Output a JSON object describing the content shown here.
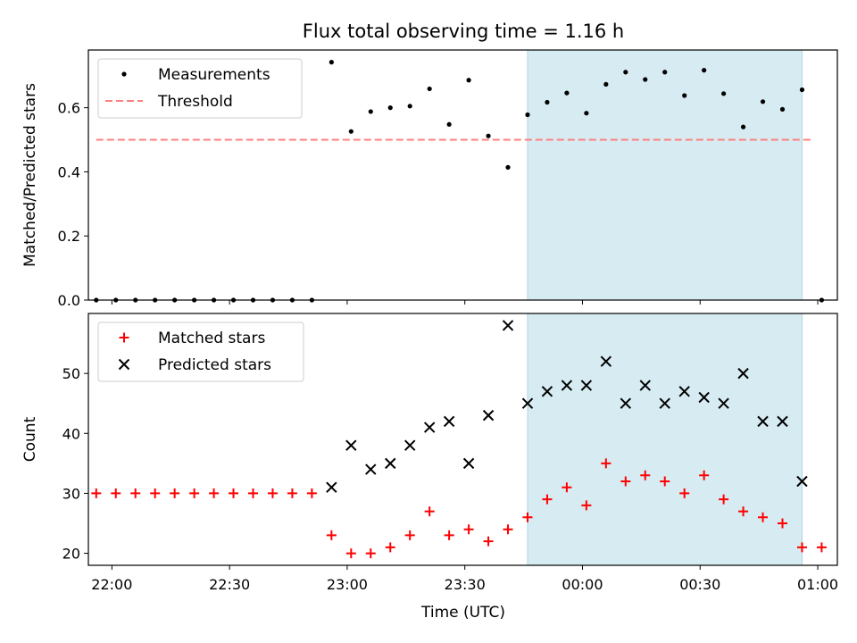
{
  "chart_data": {
    "title": "Flux total observing time = 1.16 h",
    "xlabel": "Time (UTC)",
    "x_ticks": [
      "22:00",
      "22:30",
      "23:00",
      "23:30",
      "00:00",
      "00:30",
      "01:00"
    ],
    "x_range": [
      "21:54",
      "01:05"
    ],
    "highlight_span": [
      "23:46",
      "00:56"
    ],
    "highlight_color": "#add8e6",
    "panels": [
      {
        "type": "scatter",
        "ylabel": "Matched/Predicted stars",
        "ylim": [
          0,
          0.78
        ],
        "y_ticks": [
          "0.0",
          "0.2",
          "0.4",
          "0.6"
        ],
        "legend_position": "upper left",
        "series": [
          {
            "name": "Measurements",
            "marker": "dot",
            "color": "#000000",
            "points": [
              [
                "21:56",
                0
              ],
              [
                "22:01",
                0
              ],
              [
                "22:06",
                0
              ],
              [
                "22:11",
                0
              ],
              [
                "22:16",
                0
              ],
              [
                "22:21",
                0
              ],
              [
                "22:26",
                0
              ],
              [
                "22:31",
                0
              ],
              [
                "22:36",
                0
              ],
              [
                "22:41",
                0
              ],
              [
                "22:46",
                0
              ],
              [
                "22:51",
                0
              ],
              [
                "22:56",
                0.742
              ],
              [
                "23:01",
                0.526
              ],
              [
                "23:06",
                0.588
              ],
              [
                "23:11",
                0.6
              ],
              [
                "23:16",
                0.605
              ],
              [
                "23:21",
                0.659
              ],
              [
                "23:26",
                0.548
              ],
              [
                "23:31",
                0.686
              ],
              [
                "23:36",
                0.512
              ],
              [
                "23:41",
                0.414
              ],
              [
                "23:46",
                0.578
              ],
              [
                "23:51",
                0.617
              ],
              [
                "23:56",
                0.646
              ],
              [
                "00:01",
                0.583
              ],
              [
                "00:06",
                0.673
              ],
              [
                "00:11",
                0.711
              ],
              [
                "00:16",
                0.688
              ],
              [
                "00:21",
                0.711
              ],
              [
                "00:26",
                0.638
              ],
              [
                "00:31",
                0.717
              ],
              [
                "00:36",
                0.644
              ],
              [
                "00:41",
                0.54
              ],
              [
                "00:46",
                0.619
              ],
              [
                "00:51",
                0.595
              ],
              [
                "00:56",
                0.656
              ],
              [
                "01:01",
                0
              ]
            ]
          },
          {
            "name": "Threshold",
            "type": "line",
            "style": "dashed",
            "color": "#ff7f7f",
            "points": [
              [
                "21:56",
                0.5
              ],
              [
                "00:59",
                0.5
              ]
            ]
          }
        ]
      },
      {
        "type": "scatter",
        "ylabel": "Count",
        "ylim": [
          18,
          60
        ],
        "y_ticks": [
          "20",
          "30",
          "40",
          "50"
        ],
        "legend_position": "upper left",
        "series": [
          {
            "name": "Matched stars",
            "marker": "+",
            "color": "#ff0000",
            "points": [
              [
                "21:56",
                30
              ],
              [
                "22:01",
                30
              ],
              [
                "22:06",
                30
              ],
              [
                "22:11",
                30
              ],
              [
                "22:16",
                30
              ],
              [
                "22:21",
                30
              ],
              [
                "22:26",
                30
              ],
              [
                "22:31",
                30
              ],
              [
                "22:36",
                30
              ],
              [
                "22:41",
                30
              ],
              [
                "22:46",
                30
              ],
              [
                "22:51",
                30
              ],
              [
                "22:56",
                23
              ],
              [
                "23:01",
                20
              ],
              [
                "23:06",
                20
              ],
              [
                "23:11",
                21
              ],
              [
                "23:16",
                23
              ],
              [
                "23:21",
                27
              ],
              [
                "23:26",
                23
              ],
              [
                "23:31",
                24
              ],
              [
                "23:36",
                22
              ],
              [
                "23:41",
                24
              ],
              [
                "23:46",
                26
              ],
              [
                "23:51",
                29
              ],
              [
                "23:56",
                31
              ],
              [
                "00:01",
                28
              ],
              [
                "00:06",
                35
              ],
              [
                "00:11",
                32
              ],
              [
                "00:16",
                33
              ],
              [
                "00:21",
                32
              ],
              [
                "00:26",
                30
              ],
              [
                "00:31",
                33
              ],
              [
                "00:36",
                29
              ],
              [
                "00:41",
                27
              ],
              [
                "00:46",
                26
              ],
              [
                "00:51",
                25
              ],
              [
                "00:56",
                21
              ],
              [
                "01:01",
                21
              ]
            ]
          },
          {
            "name": "Predicted stars",
            "marker": "x",
            "color": "#000000",
            "points": [
              [
                "22:56",
                31
              ],
              [
                "23:01",
                38
              ],
              [
                "23:06",
                34
              ],
              [
                "23:11",
                35
              ],
              [
                "23:16",
                38
              ],
              [
                "23:21",
                41
              ],
              [
                "23:26",
                42
              ],
              [
                "23:31",
                35
              ],
              [
                "23:36",
                43
              ],
              [
                "23:41",
                58
              ],
              [
                "23:46",
                45
              ],
              [
                "23:51",
                47
              ],
              [
                "23:56",
                48
              ],
              [
                "00:01",
                48
              ],
              [
                "00:06",
                52
              ],
              [
                "00:11",
                45
              ],
              [
                "00:16",
                48
              ],
              [
                "00:21",
                45
              ],
              [
                "00:26",
                47
              ],
              [
                "00:31",
                46
              ],
              [
                "00:36",
                45
              ],
              [
                "00:41",
                50
              ],
              [
                "00:46",
                42
              ],
              [
                "00:51",
                42
              ],
              [
                "00:56",
                32
              ]
            ]
          }
        ]
      }
    ]
  }
}
